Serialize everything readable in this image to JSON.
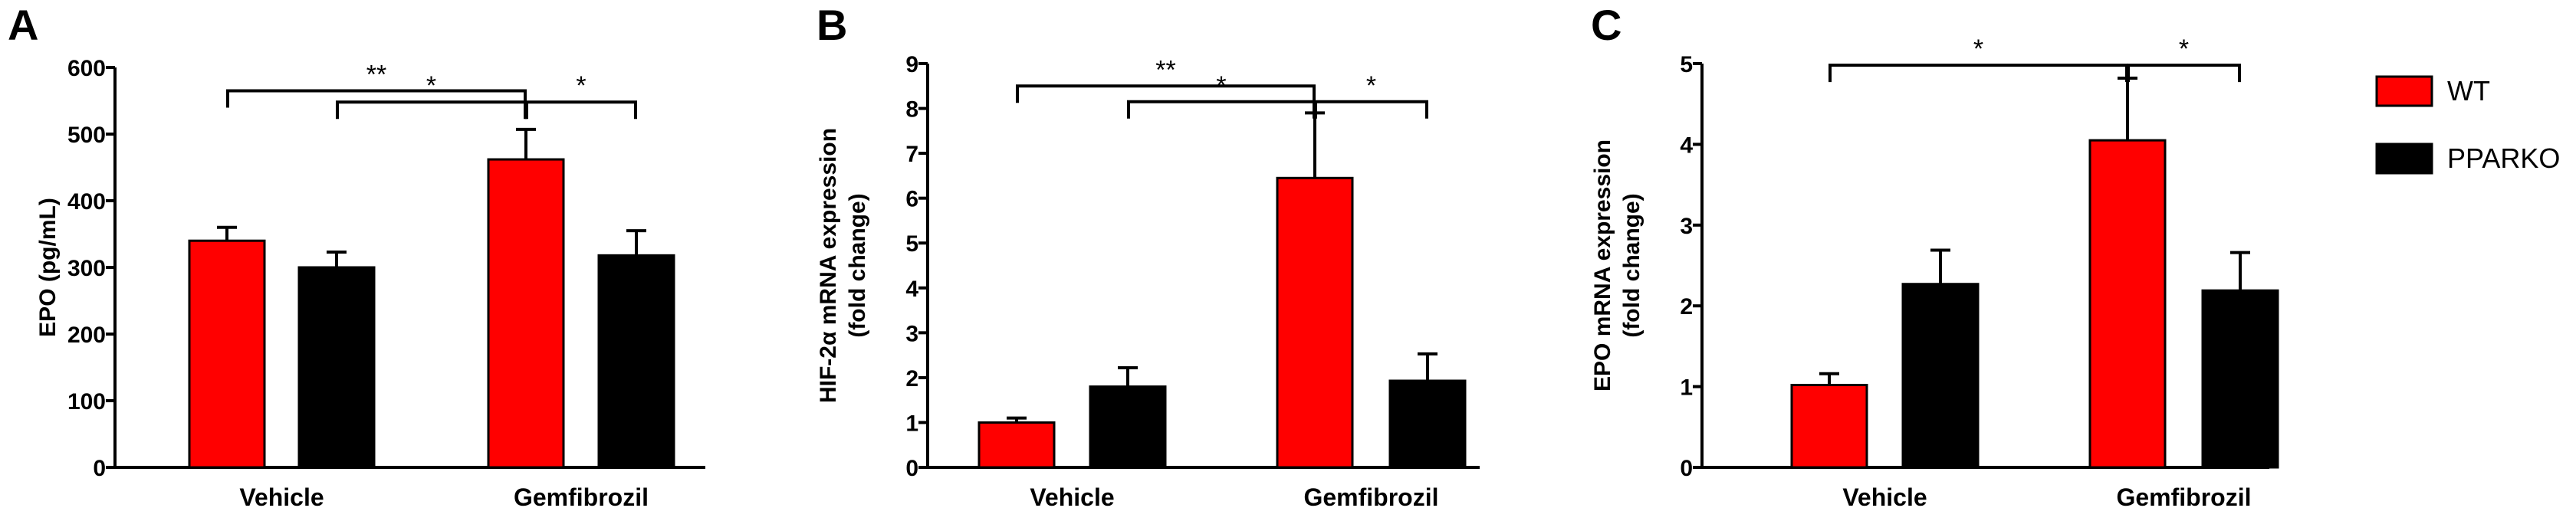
{
  "chart_data": [
    {
      "panel": "A",
      "type": "bar",
      "categories": [
        "Vehicle",
        "Gemfibrozil"
      ],
      "ylabel": "EPO (pg/mL)",
      "ylim": [
        0,
        600
      ],
      "yticks": [
        0,
        100,
        200,
        300,
        400,
        500,
        600
      ],
      "series": [
        {
          "name": "WT",
          "values": [
            340,
            462
          ],
          "errors": [
            20,
            45
          ]
        },
        {
          "name": "PPARKO",
          "values": [
            300,
            318
          ],
          "errors": [
            23,
            37
          ]
        }
      ],
      "significance": [
        {
          "from": "Vehicle-WT",
          "to": "Gemfibrozil-WT",
          "label": "**",
          "y": 565
        },
        {
          "from": "Vehicle-PPARKO",
          "to": "Gemfibrozil-WT",
          "label": "*",
          "y": 548
        },
        {
          "from": "Gemfibrozil-WT",
          "to": "Gemfibrozil-PPARKO",
          "label": "*",
          "y": 548
        }
      ],
      "grid": false
    },
    {
      "panel": "B",
      "type": "bar",
      "categories": [
        "Vehicle",
        "Gemfibrozil"
      ],
      "ylabel": "HIF-2α mRNA expression",
      "ylabel2": "(fold change)",
      "ylim": [
        0,
        9
      ],
      "yticks": [
        0,
        1,
        2,
        3,
        4,
        5,
        6,
        7,
        8,
        9
      ],
      "series": [
        {
          "name": "WT",
          "values": [
            1.0,
            6.45
          ],
          "errors": [
            0.1,
            1.45
          ]
        },
        {
          "name": "PPARKO",
          "values": [
            1.8,
            1.93
          ],
          "errors": [
            0.42,
            0.6
          ]
        }
      ],
      "significance": [
        {
          "from": "Vehicle-WT",
          "to": "Gemfibrozil-WT",
          "label": "**",
          "y": 8.5
        },
        {
          "from": "Vehicle-PPARKO",
          "to": "Gemfibrozil-WT",
          "label": "*",
          "y": 8.15
        },
        {
          "from": "Gemfibrozil-WT",
          "to": "Gemfibrozil-PPARKO",
          "label": "*",
          "y": 8.15
        }
      ],
      "grid": false
    },
    {
      "panel": "C",
      "type": "bar",
      "categories": [
        "Vehicle",
        "Gemfibrozil"
      ],
      "ylabel": "EPO mRNA expression",
      "ylabel2": "(fold change)",
      "ylim": [
        0,
        5
      ],
      "yticks": [
        0,
        1,
        2,
        3,
        4,
        5
      ],
      "series": [
        {
          "name": "WT",
          "values": [
            1.02,
            4.05
          ],
          "errors": [
            0.14,
            0.77
          ]
        },
        {
          "name": "PPARKO",
          "values": [
            2.27,
            2.19
          ],
          "errors": [
            0.42,
            0.47
          ]
        }
      ],
      "significance": [
        {
          "from": "Vehicle-WT",
          "to": "Gemfibrozil-WT",
          "label": "*",
          "y": 4.98
        },
        {
          "from": "Gemfibrozil-WT",
          "to": "Gemfibrozil-PPARKO",
          "label": "*",
          "y": 4.98
        }
      ],
      "grid": false
    }
  ],
  "legend": {
    "placement": "right",
    "items": [
      {
        "label": "WT",
        "color": "#ff0000"
      },
      {
        "label": "PPARKO",
        "color": "#000000"
      }
    ]
  },
  "colors": {
    "WT": "#ff0000",
    "PPARKO": "#000000"
  }
}
